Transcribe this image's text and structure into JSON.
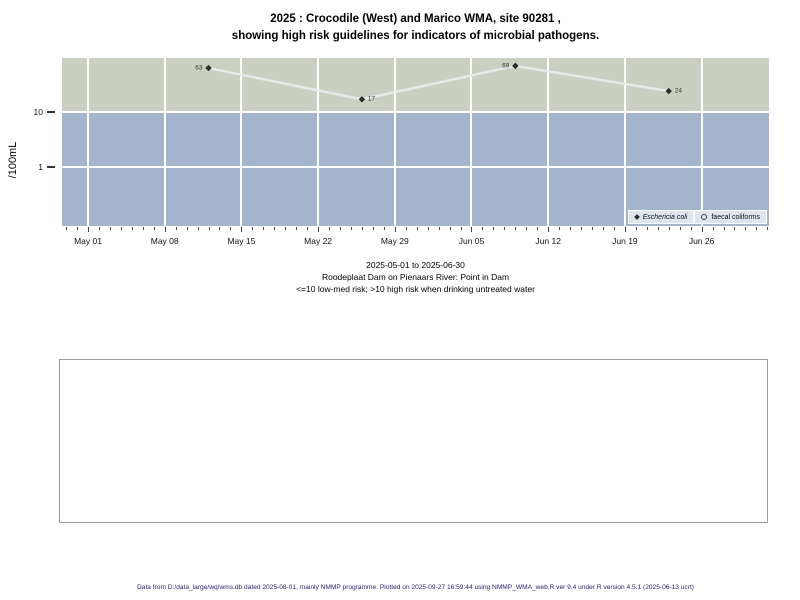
{
  "title": {
    "line1": "2025 : Crocodile (West) and Marico WMA, site 90281 ,",
    "line2": "showing high risk guidelines for indicators of microbial pathogens."
  },
  "subtitle": {
    "line1": "2025-05-01 to 2025-06-30",
    "line2": "Roodeplaat Dam on Pienaars River: Point in Dam",
    "line3": "<=10 low-med risk; >10 high risk when drinking untreated water"
  },
  "footer": {
    "text": "Data from D:/data_large/wq/wms.db dated 2025-08-01, mainly NMMP programme. Plotted on 2025-09-27 16:59:44 using NMMP_WMA_web.R ver 9.4 under R version 4.5.1 (2025-06-13 ucrt)"
  },
  "colors": {
    "high_risk_band": "#c9d0c1",
    "low_med_risk_band": "#a4b4cd",
    "series_line": "#e8e8e8",
    "marker": "#2b2b2b",
    "legend_background": "#dee5ef",
    "footer_text": "#1f1f6e"
  },
  "chart_data": {
    "type": "line",
    "title": "2025 : Crocodile (West) and Marico WMA, site 90281 , showing high risk guidelines for indicators of microbial pathogens.",
    "xlabel": "",
    "ylabel": "/100mL",
    "y_scale": "log",
    "x_start_date": "2025-05-01",
    "x_range_days": [
      -2,
      62
    ],
    "x_tick_labels": [
      "May 01",
      "May 08",
      "May 15",
      "May 22",
      "May 29",
      "Jun 05",
      "Jun 12",
      "Jun 19",
      "Jun 26"
    ],
    "y_ticks": [
      {
        "value": 10,
        "label": "10"
      },
      {
        "value": 1,
        "label": "1"
      }
    ],
    "bands": [
      {
        "name": "high-risk",
        "condition": ">10 high risk",
        "color": "#c9d0c1"
      },
      {
        "name": "low-med-risk",
        "condition": "<=10 low-med risk",
        "color": "#a4b4cd"
      }
    ],
    "series": [
      {
        "name": "Eschericia coli",
        "marker": "filled-diamond",
        "points": [
          {
            "date": "2025-05-12",
            "value": 63,
            "label": "63",
            "label_side": "left"
          },
          {
            "date": "2025-05-26",
            "value": 17,
            "label": "17",
            "label_side": "right"
          },
          {
            "date": "2025-06-09",
            "value": 69,
            "label": "69",
            "label_side": "left"
          },
          {
            "date": "2025-06-23",
            "value": 24,
            "label": "24",
            "label_side": "right"
          }
        ]
      },
      {
        "name": "faecal coliforms",
        "marker": "open-circle",
        "points": []
      }
    ]
  }
}
